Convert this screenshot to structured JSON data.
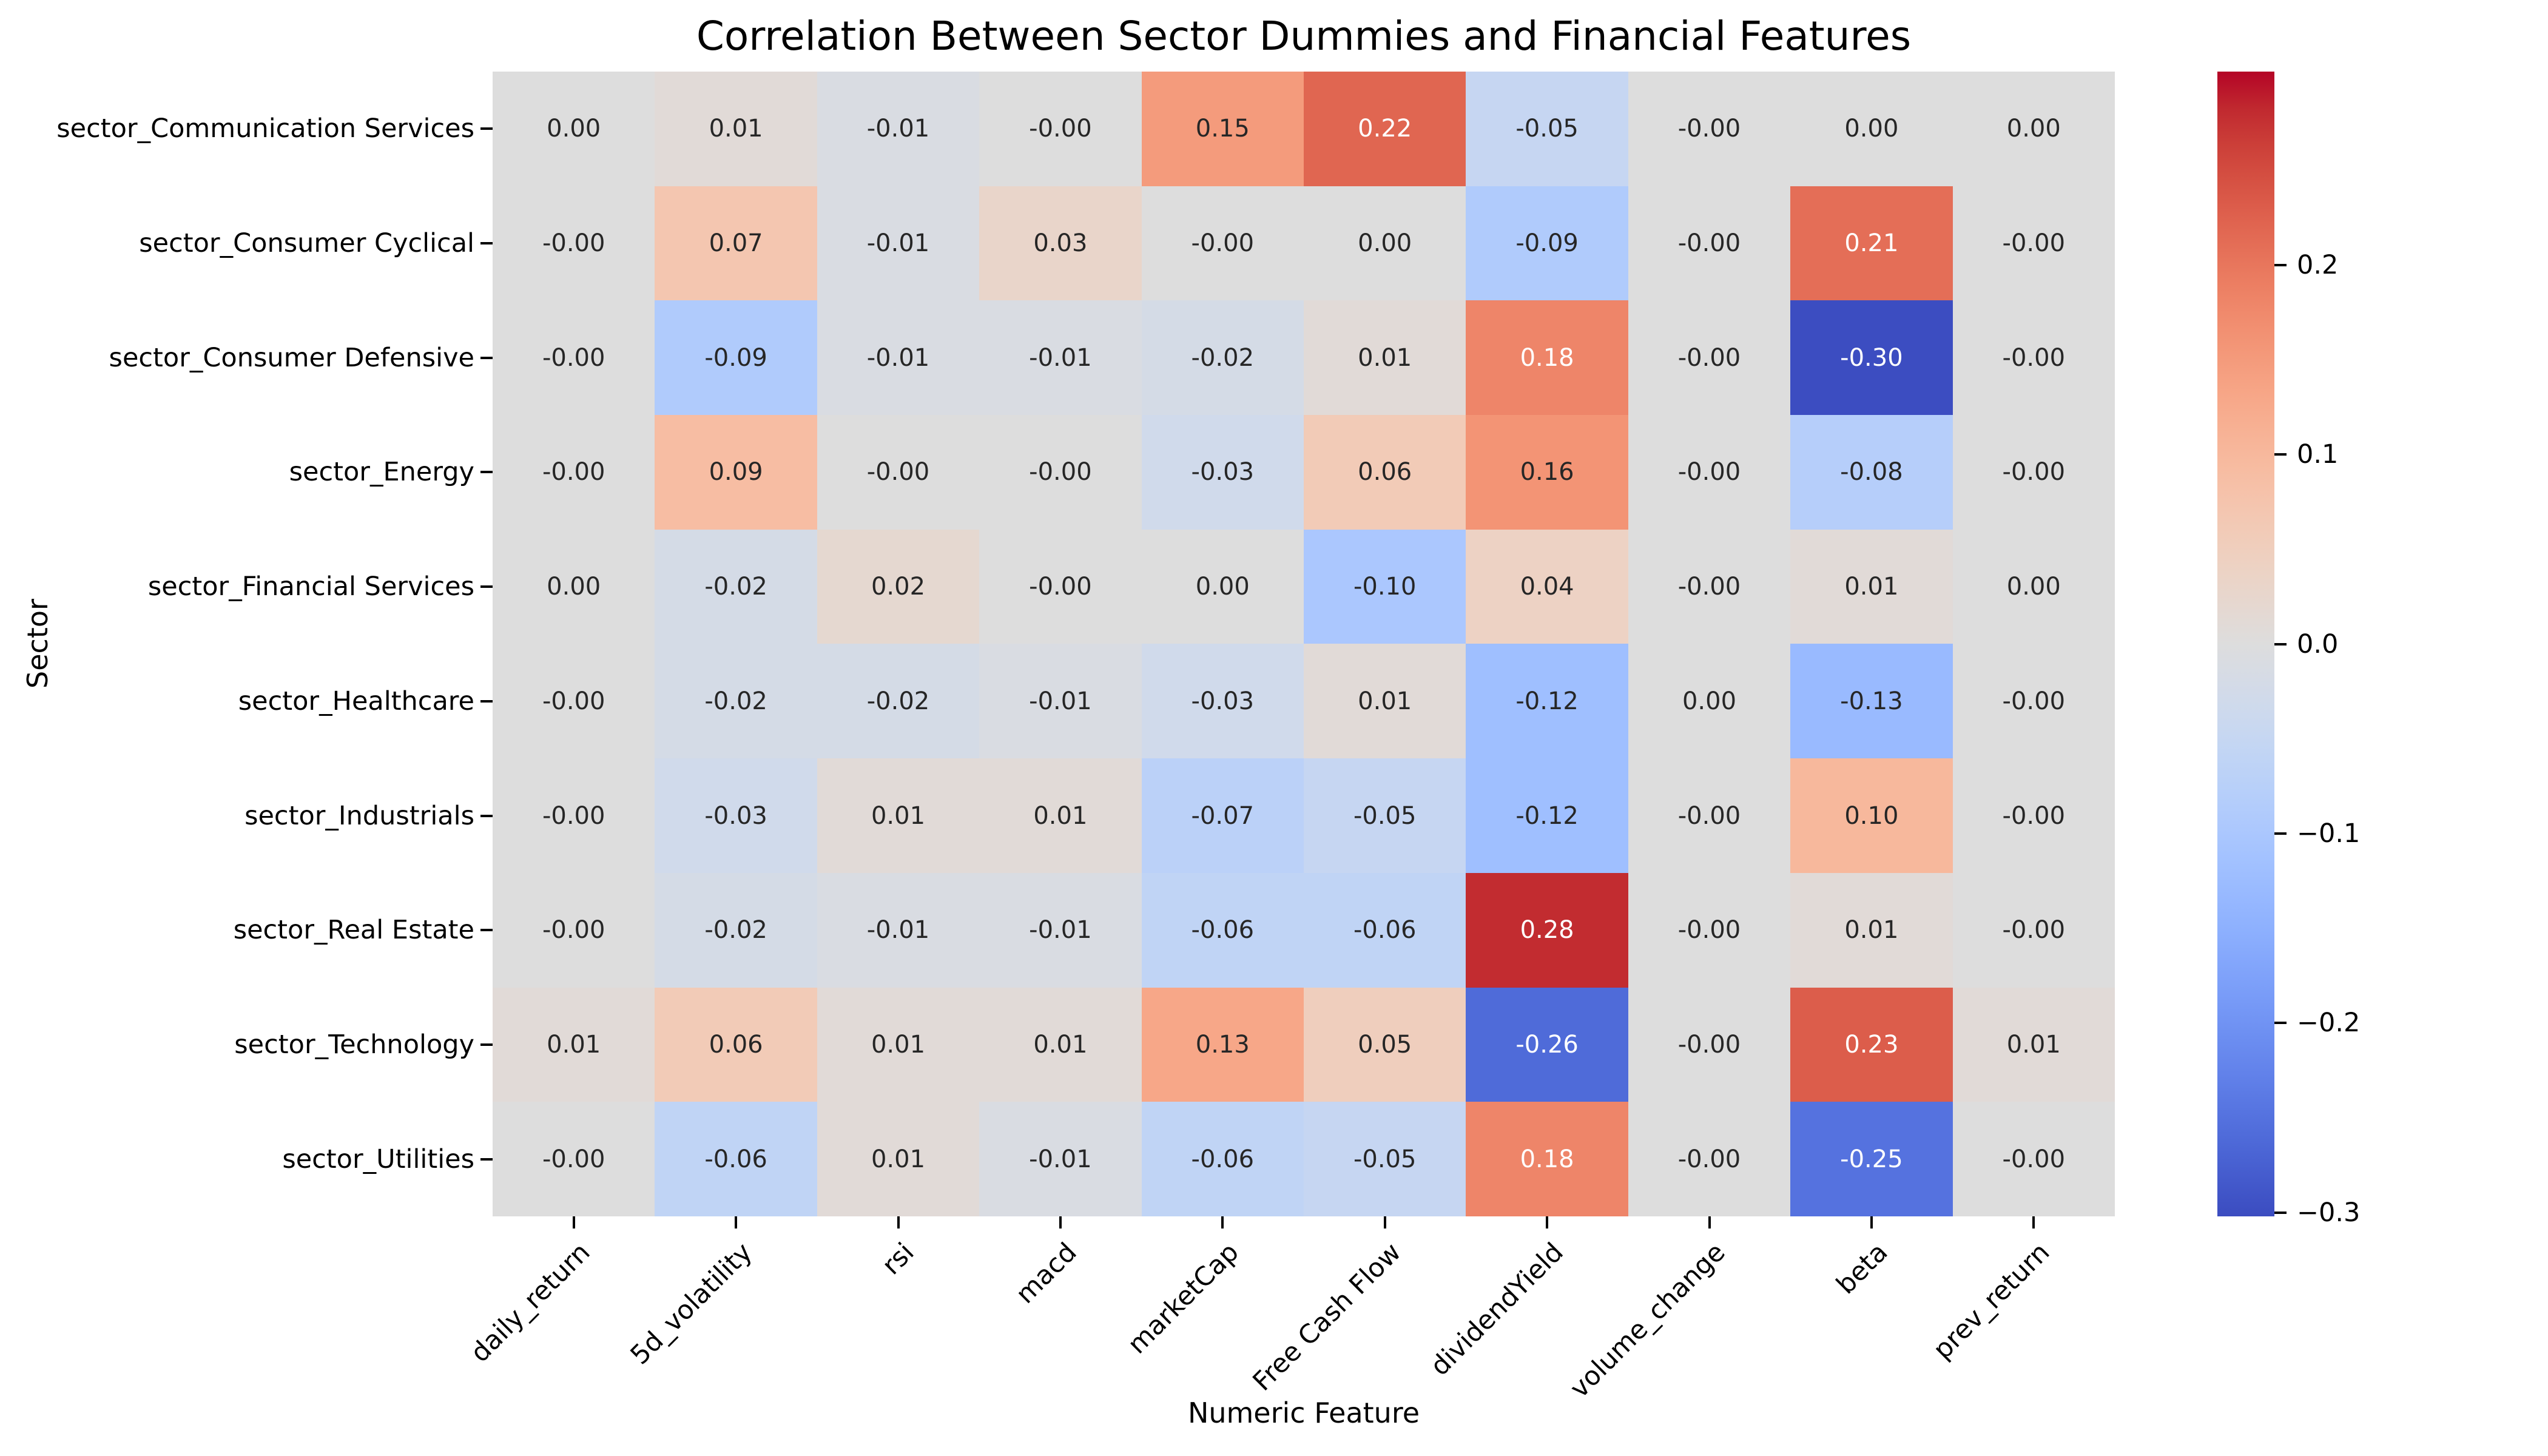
{
  "chart_data": {
    "type": "heatmap",
    "title": "Correlation Between Sector Dummies and Financial Features",
    "xlabel": "Numeric Feature",
    "ylabel": "Sector",
    "colormap": "coolwarm",
    "center": 0,
    "vmin": -0.302,
    "vmax": 0.302,
    "grid": false,
    "legend_position": "colorbar-right",
    "columns": [
      "daily_return",
      "5d_volatility",
      "rsi",
      "macd",
      "marketCap",
      "Free Cash Flow",
      "dividendYield",
      "volume_change",
      "beta",
      "prev_return"
    ],
    "rows": [
      "sector_Communication Services",
      "sector_Consumer Cyclical",
      "sector_Consumer Defensive",
      "sector_Energy",
      "sector_Financial Services",
      "sector_Healthcare",
      "sector_Industrials",
      "sector_Real Estate",
      "sector_Technology",
      "sector_Utilities"
    ],
    "values": [
      [
        "0.00",
        "0.01",
        "-0.01",
        "-0.00",
        "0.15",
        "0.22",
        "-0.05",
        "-0.00",
        "0.00",
        "0.00"
      ],
      [
        "-0.00",
        "0.07",
        "-0.01",
        "0.03",
        "-0.00",
        "0.00",
        "-0.09",
        "-0.00",
        "0.21",
        "-0.00"
      ],
      [
        "-0.00",
        "-0.09",
        "-0.01",
        "-0.01",
        "-0.02",
        "0.01",
        "0.18",
        "-0.00",
        "-0.30",
        "-0.00"
      ],
      [
        "-0.00",
        "0.09",
        "-0.00",
        "-0.00",
        "-0.03",
        "0.06",
        "0.16",
        "-0.00",
        "-0.08",
        "-0.00"
      ],
      [
        "0.00",
        "-0.02",
        "0.02",
        "-0.00",
        "0.00",
        "-0.10",
        "0.04",
        "-0.00",
        "0.01",
        "0.00"
      ],
      [
        "-0.00",
        "-0.02",
        "-0.02",
        "-0.01",
        "-0.03",
        "0.01",
        "-0.12",
        "0.00",
        "-0.13",
        "-0.00"
      ],
      [
        "-0.00",
        "-0.03",
        "0.01",
        "0.01",
        "-0.07",
        "-0.05",
        "-0.12",
        "-0.00",
        "0.10",
        "-0.00"
      ],
      [
        "-0.00",
        "-0.02",
        "-0.01",
        "-0.01",
        "-0.06",
        "-0.06",
        "0.28",
        "-0.00",
        "0.01",
        "-0.00"
      ],
      [
        "0.01",
        "0.06",
        "0.01",
        "0.01",
        "0.13",
        "0.05",
        "-0.26",
        "-0.00",
        "0.23",
        "0.01"
      ],
      [
        "-0.00",
        "-0.06",
        "0.01",
        "-0.01",
        "-0.06",
        "-0.05",
        "0.18",
        "-0.00",
        "-0.25",
        "-0.00"
      ]
    ],
    "colorbar_ticks": [
      "0.2",
      "0.1",
      "0.0",
      "−0.1",
      "−0.2",
      "−0.3"
    ],
    "colorbar_tick_values": [
      0.2,
      0.1,
      0.0,
      -0.1,
      -0.2,
      -0.3
    ],
    "annotation_text_dark": "#262626",
    "annotation_text_light": "#ffffff"
  }
}
